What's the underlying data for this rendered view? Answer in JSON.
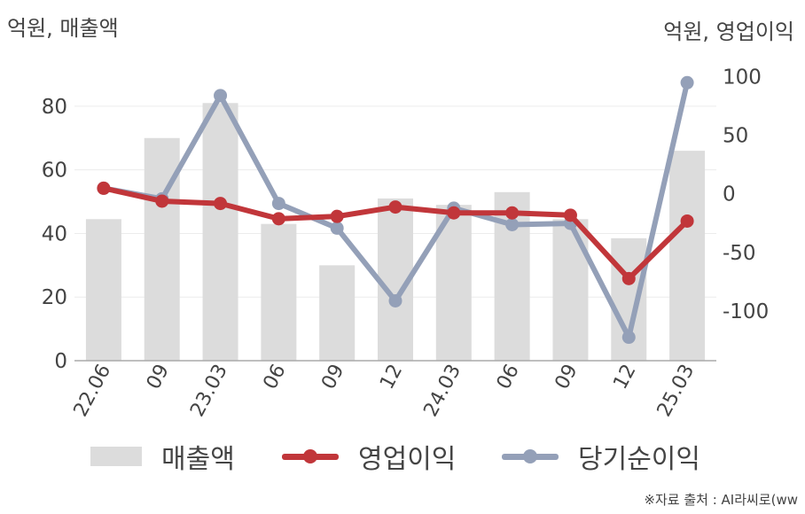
{
  "units": {
    "left": "억원, 매출액",
    "right": "억원, 영업이익"
  },
  "source": "※자료 출처 : AI라씨로(ww",
  "colors": {
    "bars": "#dcdcdc",
    "operating": "#c1363a",
    "net": "#94a0b8",
    "grid": "#ececec",
    "axis": "#aaaaaa"
  },
  "chart_data": {
    "type": "bar+line",
    "categories": [
      "22.06",
      "09",
      "23.03",
      "06",
      "09",
      "12",
      "24.03",
      "06",
      "09",
      "12",
      "25.03"
    ],
    "left_axis": {
      "ylim": [
        0,
        90
      ],
      "ticks": [
        0,
        20,
        40,
        60,
        80
      ]
    },
    "right_axis": {
      "ylim": [
        -143,
        101
      ],
      "ticks": [
        100,
        50,
        0,
        -50,
        -100
      ]
    },
    "series": [
      {
        "name": "매출액",
        "type": "bar",
        "axis": "left",
        "values": [
          44.5,
          70,
          81,
          43,
          30,
          51,
          49,
          53,
          44.5,
          38.5,
          66
        ]
      },
      {
        "name": "영업이익",
        "type": "line",
        "axis": "right",
        "values": [
          4,
          -7,
          -9,
          -22,
          -20,
          -12,
          -17,
          -17,
          -19,
          -73,
          -24
        ]
      },
      {
        "name": "당기순이익",
        "type": "line",
        "axis": "right",
        "values": [
          4,
          -5,
          83,
          -9,
          -30,
          -92,
          -13,
          -27,
          -26,
          -123,
          94
        ]
      }
    ],
    "legend_position": "bottom",
    "grid": true
  }
}
